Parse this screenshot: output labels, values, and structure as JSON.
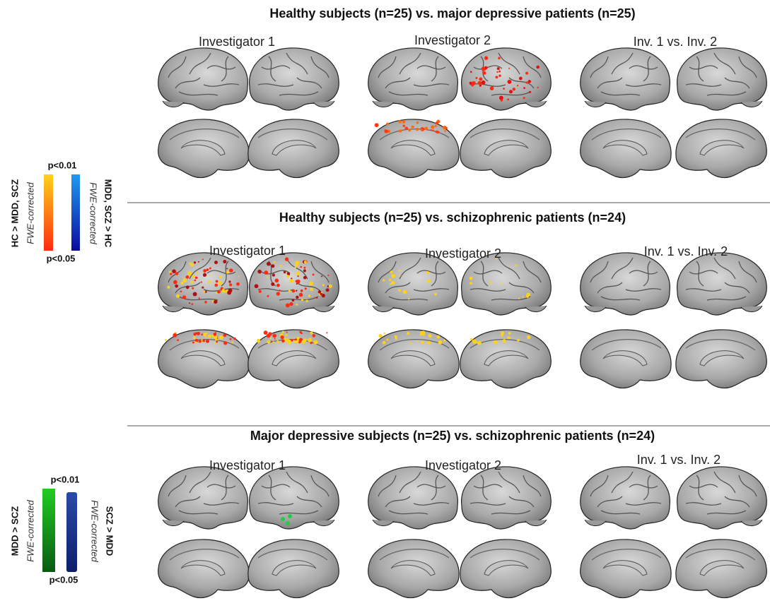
{
  "panels": [
    {
      "title": "Healthy subjects (n=25) vs. major depressive patients (n=25)",
      "columns": [
        "Investigator 1",
        "Investigator 2",
        "Inv. 1 vs. Inv. 2"
      ]
    },
    {
      "title": "Healthy subjects (n=25) vs. schizophrenic patients (n=24)",
      "columns": [
        "Investigator 1",
        "Investigator 2",
        "Inv. 1 vs. Inv. 2"
      ]
    },
    {
      "title": "Major depressive subjects (n=25) vs. schizophrenic patients (n=24)",
      "columns": [
        "Investigator 1",
        "Investigator 2",
        "Inv. 1 vs. Inv. 2"
      ]
    }
  ],
  "legends": [
    {
      "top": "p<0.01",
      "bottom": "p<0.05",
      "left_label": "HC > MDD, SCZ",
      "left_note": "FWE-corrected",
      "right_label": "MDD, SCZ > HC",
      "right_note": "FWE-corrected"
    },
    {
      "top": "p<0.01",
      "bottom": "p<0.05",
      "left_label": "MDD > SCZ",
      "left_note": "FWE-corrected",
      "right_label": "SCZ > MDD",
      "right_note": "FWE-corrected"
    }
  ]
}
